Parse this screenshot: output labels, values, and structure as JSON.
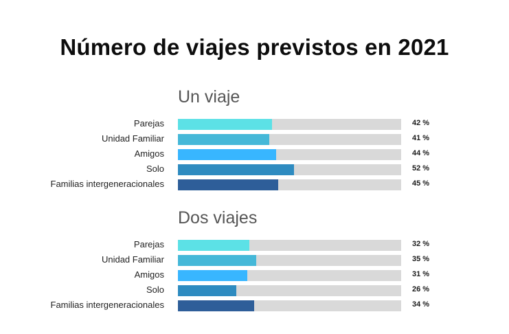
{
  "chart_data": {
    "type": "bar",
    "orientation": "horizontal",
    "title": "Número de viajes previstos en 2021",
    "xlim": [
      0,
      100
    ],
    "value_suffix": " %",
    "panels": [
      {
        "title": "Un viaje",
        "bars": [
          {
            "category": "Parejas",
            "value": 42,
            "value_label": "42 %",
            "color": "#5ce1e6"
          },
          {
            "category": "Unidad Familiar",
            "value": 41,
            "value_label": "41 %",
            "color": "#45b8d8"
          },
          {
            "category": "Amigos",
            "value": 44,
            "value_label": "44 %",
            "color": "#38b6ff"
          },
          {
            "category": "Solo",
            "value": 52,
            "value_label": "52 %",
            "color": "#2e8bc0"
          },
          {
            "category": "Familias intergeneracionales",
            "value": 45,
            "value_label": "45 %",
            "color": "#2e5e99"
          }
        ]
      },
      {
        "title": "Dos viajes",
        "bars": [
          {
            "category": "Parejas",
            "value": 32,
            "value_label": "32 %",
            "color": "#5ce1e6"
          },
          {
            "category": "Unidad Familiar",
            "value": 35,
            "value_label": "35 %",
            "color": "#45b8d8"
          },
          {
            "category": "Amigos",
            "value": 31,
            "value_label": "31 %",
            "color": "#38b6ff"
          },
          {
            "category": "Solo",
            "value": 26,
            "value_label": "26 %",
            "color": "#2e8bc0"
          },
          {
            "category": "Familias intergeneracionales",
            "value": 34,
            "value_label": "34 %",
            "color": "#2e5e99"
          }
        ]
      }
    ],
    "track_color": "#d9d9d9",
    "grid": false,
    "legend": "none"
  }
}
